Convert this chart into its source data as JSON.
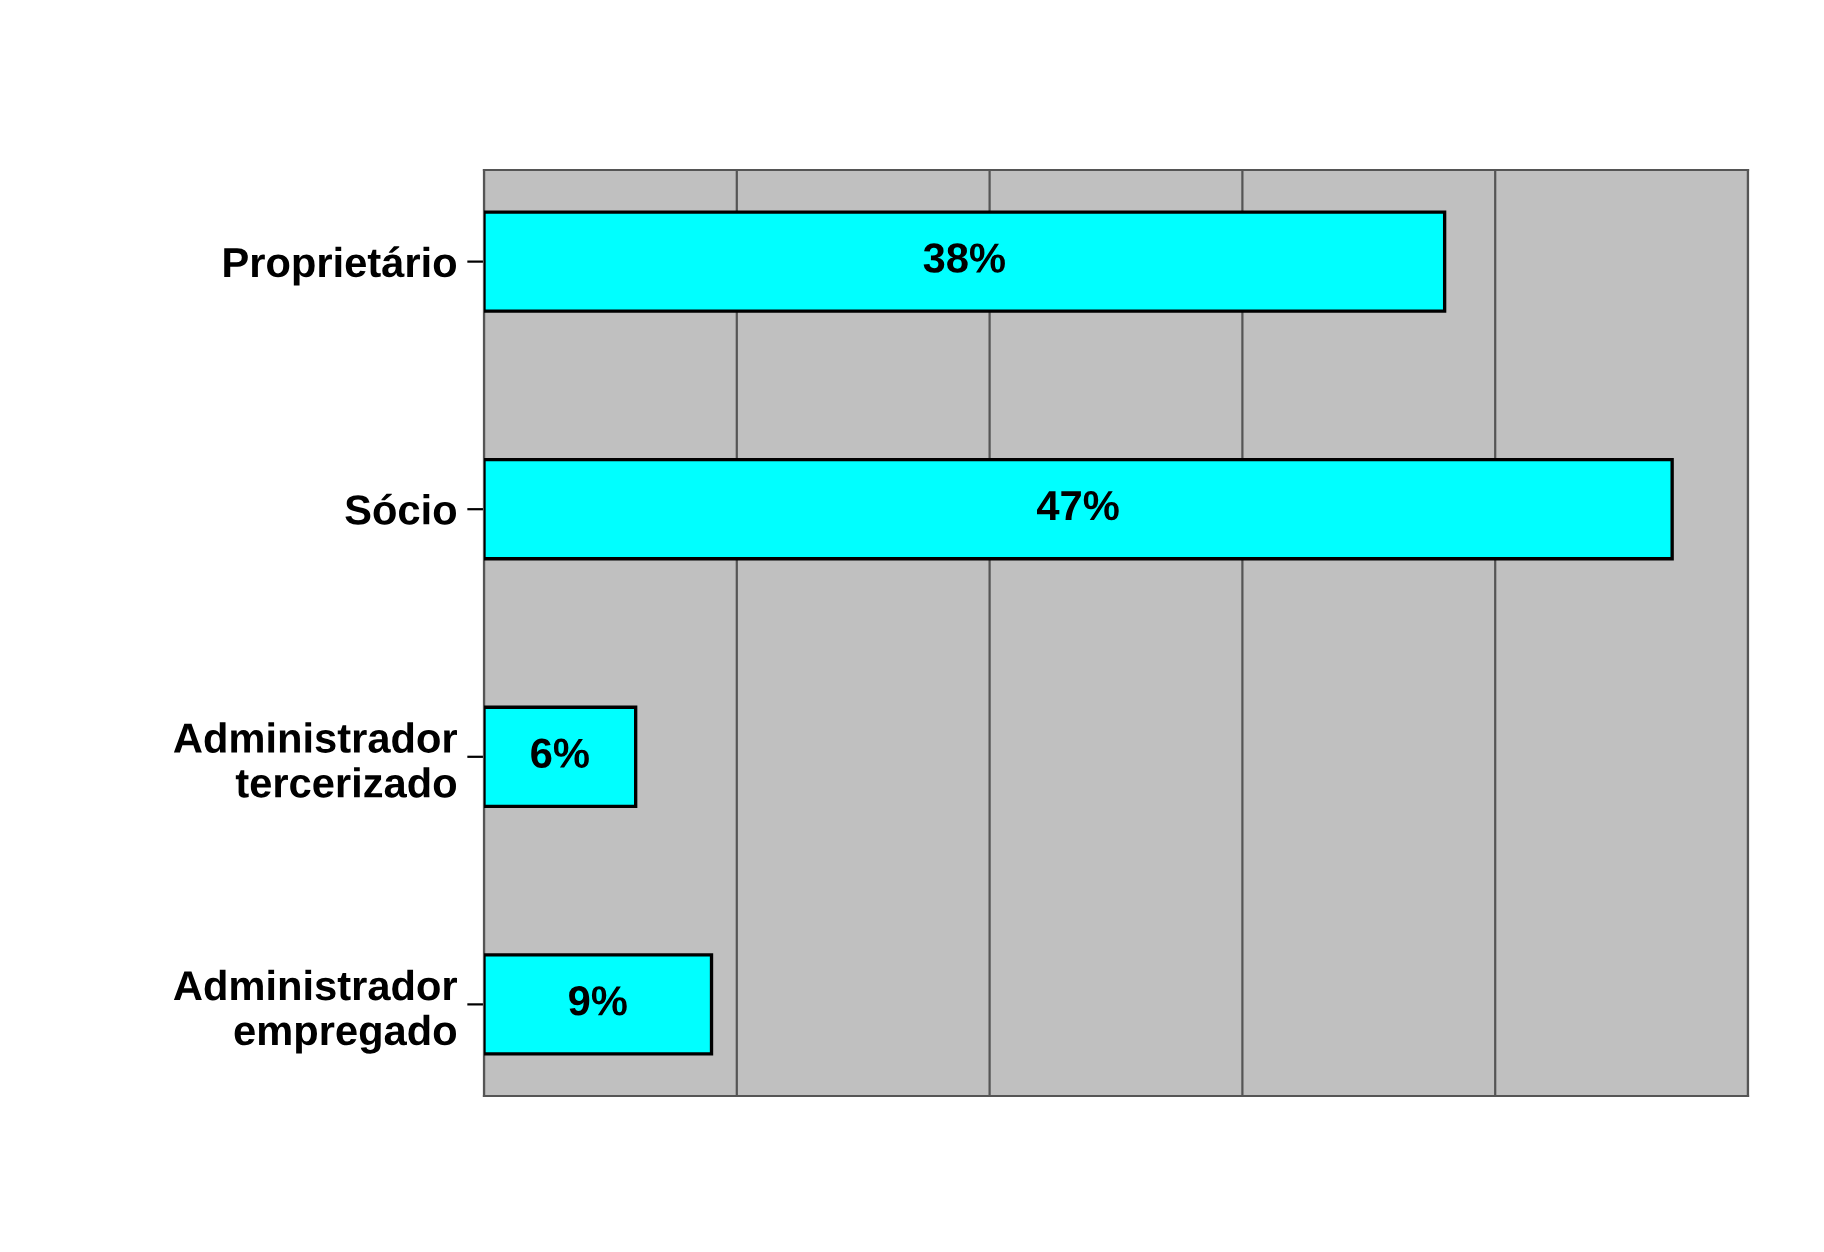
{
  "chart_data": {
    "type": "bar",
    "orientation": "horizontal",
    "categories": [
      "Proprietário",
      "Sócio",
      "Administrador\ntercerizado",
      "Administrador\nempregado"
    ],
    "values": [
      38,
      47,
      6,
      9
    ],
    "value_labels": [
      "38%",
      "47%",
      "6%",
      "9%"
    ],
    "color": "#00ffff",
    "xlim": [
      0,
      50
    ],
    "xticks": [
      {
        "value": 0,
        "label": null
      },
      {
        "value": 10,
        "label": null
      },
      {
        "value": 20,
        "label": null
      },
      {
        "value": 30,
        "label": null
      },
      {
        "value": 40,
        "label": null
      },
      {
        "value": 50,
        "label": null
      }
    ],
    "tick_labels": "y",
    "grid": "x",
    "legend": false
  }
}
